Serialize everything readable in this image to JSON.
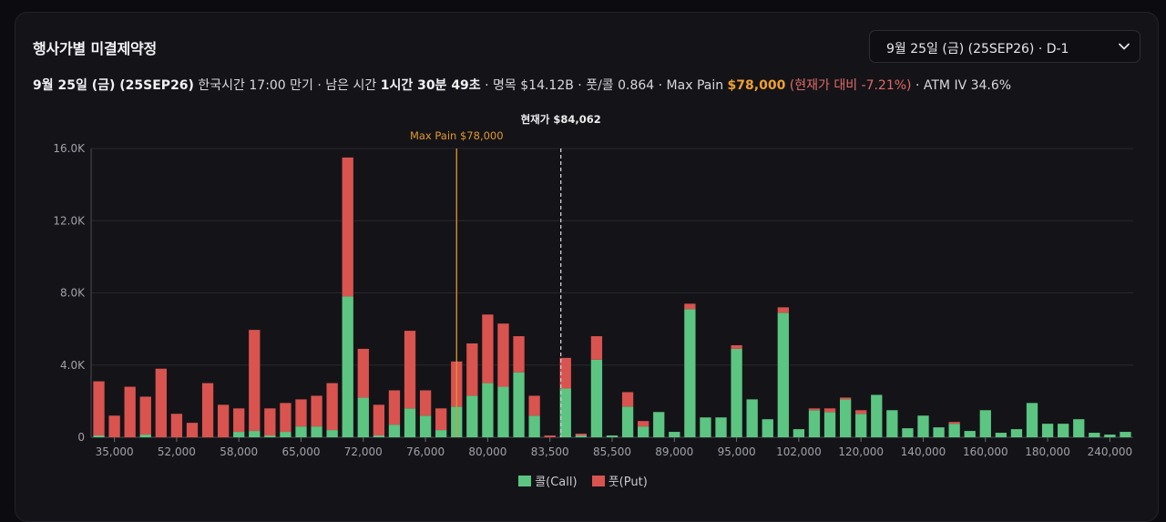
{
  "header": {
    "title": "행사가별 미결제약정",
    "expiry_select": {
      "value": "9월 25일 (금) (25SEP26) · D-1"
    }
  },
  "info_line": {
    "date": "9월 25일 (금) (25SEP26)",
    "expiry_text": " 한국시간 17:00 만기 · 남은 시간 ",
    "remaining": "1시간 30분 49초",
    "notional": " · 명목 $14.12B · 풋/콜 0.864 · Max Pain ",
    "max_pain": "$78,000",
    "vs_current": " (현재가 대비 -7.21%)",
    "atm_iv": " · ATM IV 34.6%"
  },
  "colors": {
    "call": "#5cc581",
    "put": "#d9534f",
    "max_pain_line": "#e0972e",
    "current_line": "#d0d0d5"
  },
  "chart_data": {
    "type": "bar",
    "stacked": true,
    "ylim": [
      0,
      16000
    ],
    "y_ticks": [
      0,
      4000,
      8000,
      12000,
      16000
    ],
    "y_tick_labels": [
      "0",
      "4.0K",
      "8.0K",
      "12.0K",
      "16.0K"
    ],
    "x_tick_labels": [
      "35,000",
      "52,000",
      "58,000",
      "65,000",
      "72,000",
      "76,000",
      "80,000",
      "83,500",
      "85,500",
      "89,000",
      "95,000",
      "102,000",
      "120,000",
      "140,000",
      "160,000",
      "180,000",
      "240,000"
    ],
    "x_tick_positions": [
      1,
      5,
      9,
      13,
      17,
      21,
      25,
      29,
      33,
      37,
      41,
      45,
      49,
      53,
      57,
      61,
      65
    ],
    "bar_count": 67,
    "series": [
      {
        "name": "콜(Call)",
        "values": [
          100,
          0,
          0,
          150,
          0,
          0,
          0,
          0,
          0,
          300,
          350,
          100,
          300,
          600,
          600,
          400,
          7800,
          2200,
          100,
          700,
          1600,
          1200,
          400,
          1700,
          2300,
          3000,
          2800,
          3600,
          1200,
          0,
          2700,
          100,
          4300,
          100,
          1700,
          600,
          1400,
          300,
          7100,
          1100,
          1100,
          4900,
          2100,
          1000,
          6900,
          450,
          1500,
          1400,
          2100,
          1300,
          2350,
          1500,
          500,
          1200,
          550,
          750,
          350,
          1500,
          250,
          450,
          1900,
          750,
          750,
          1000,
          250,
          150,
          300
        ]
      },
      {
        "name": "풋(Put)",
        "values": [
          3000,
          1200,
          2800,
          2100,
          3800,
          1300,
          800,
          3000,
          1800,
          1300,
          5600,
          1500,
          1600,
          1500,
          1700,
          2600,
          7700,
          2700,
          1700,
          1900,
          4300,
          1400,
          1200,
          2500,
          2900,
          3800,
          3500,
          2000,
          1100,
          100,
          1700,
          100,
          1300,
          0,
          800,
          300,
          0,
          0,
          300,
          0,
          0,
          200,
          0,
          0,
          300,
          0,
          100,
          200,
          100,
          200,
          0,
          0,
          0,
          0,
          0,
          100,
          0,
          0,
          0,
          0,
          0,
          0,
          0,
          0,
          0,
          0,
          0
        ]
      }
    ],
    "annotations": {
      "max_pain_label": "Max Pain $78,000",
      "max_pain_index": 23.5,
      "current_label": "현재가 $84,062",
      "current_index": 30.2
    },
    "legend": [
      "콜(Call)",
      "풋(Put)"
    ]
  }
}
